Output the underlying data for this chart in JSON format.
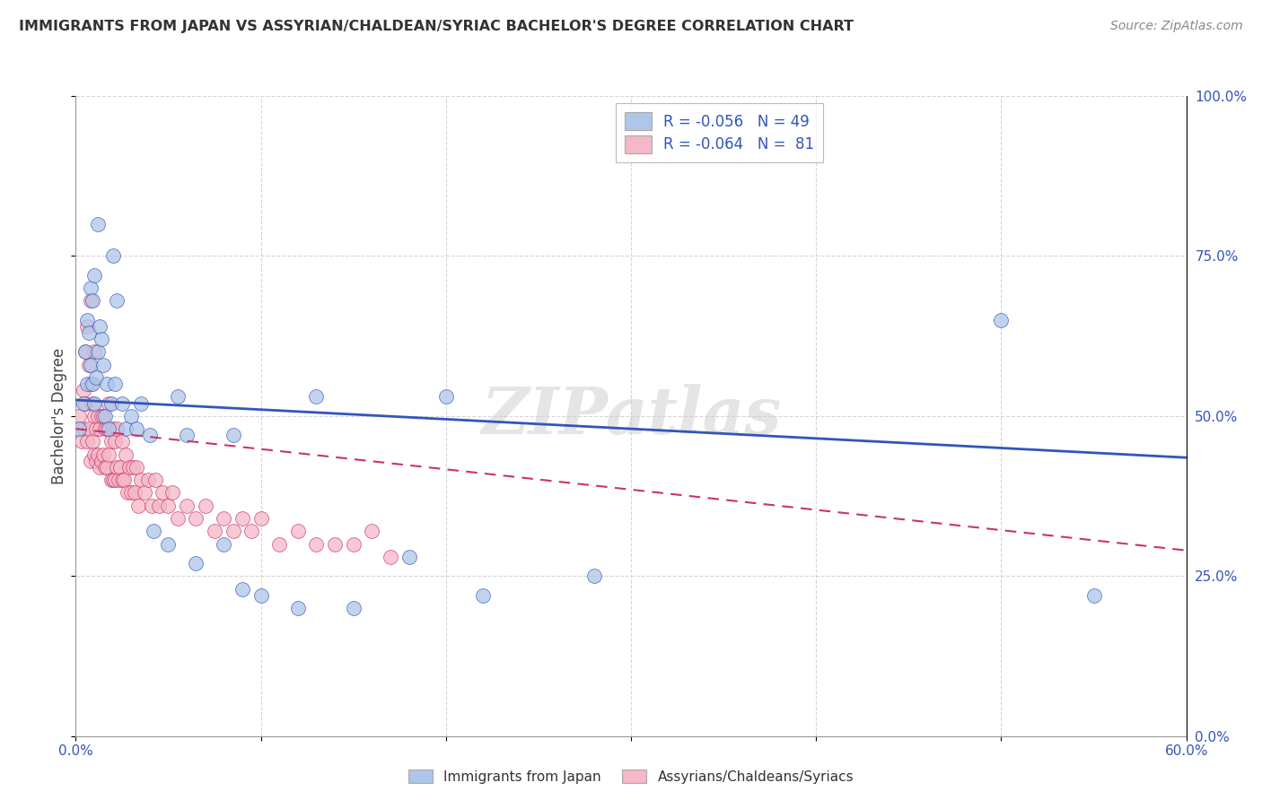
{
  "title": "IMMIGRANTS FROM JAPAN VS ASSYRIAN/CHALDEAN/SYRIAC BACHELOR'S DEGREE CORRELATION CHART",
  "source": "Source: ZipAtlas.com",
  "xlabel_ticks": [
    "0.0%",
    "",
    "",
    "",
    "",
    "",
    "60.0%"
  ],
  "xlabel_values": [
    0.0,
    0.1,
    0.2,
    0.3,
    0.4,
    0.5,
    0.6
  ],
  "ylabel_ticks": [
    "100.0%",
    "75.0%",
    "50.0%",
    "25.0%",
    "0.0%"
  ],
  "ylabel_values": [
    1.0,
    0.75,
    0.5,
    0.25,
    0.0
  ],
  "xlim": [
    0.0,
    0.6
  ],
  "ylim": [
    0.0,
    1.0
  ],
  "ylabel": "Bachelor's Degree",
  "legend_label1": "R = -0.056   N = 49",
  "legend_label2": "R = -0.064   N =  81",
  "legend_color1": "#aec6e8",
  "legend_color2": "#f4b8c8",
  "scatter_color1": "#aec6e8",
  "scatter_color2": "#f4b8c8",
  "line_color1": "#3355bb",
  "line_color2": "#cc3366",
  "watermark": "ZIPatlas",
  "bottom_label1": "Immigrants from Japan",
  "bottom_label2": "Assyrians/Chaldeans/Syriacs",
  "japan_x": [
    0.002,
    0.004,
    0.005,
    0.006,
    0.006,
    0.007,
    0.008,
    0.008,
    0.009,
    0.009,
    0.01,
    0.01,
    0.011,
    0.012,
    0.012,
    0.013,
    0.014,
    0.015,
    0.016,
    0.017,
    0.018,
    0.019,
    0.02,
    0.021,
    0.022,
    0.025,
    0.027,
    0.03,
    0.033,
    0.035,
    0.04,
    0.042,
    0.05,
    0.055,
    0.06,
    0.065,
    0.08,
    0.085,
    0.09,
    0.1,
    0.12,
    0.13,
    0.15,
    0.18,
    0.2,
    0.22,
    0.28,
    0.5,
    0.55
  ],
  "japan_y": [
    0.48,
    0.52,
    0.6,
    0.55,
    0.65,
    0.63,
    0.58,
    0.7,
    0.55,
    0.68,
    0.52,
    0.72,
    0.56,
    0.6,
    0.8,
    0.64,
    0.62,
    0.58,
    0.5,
    0.55,
    0.48,
    0.52,
    0.75,
    0.55,
    0.68,
    0.52,
    0.48,
    0.5,
    0.48,
    0.52,
    0.47,
    0.32,
    0.3,
    0.53,
    0.47,
    0.27,
    0.3,
    0.47,
    0.23,
    0.22,
    0.2,
    0.53,
    0.2,
    0.28,
    0.53,
    0.22,
    0.25,
    0.65,
    0.22
  ],
  "assyrian_x": [
    0.002,
    0.003,
    0.004,
    0.004,
    0.005,
    0.005,
    0.006,
    0.006,
    0.007,
    0.007,
    0.008,
    0.008,
    0.008,
    0.009,
    0.009,
    0.01,
    0.01,
    0.01,
    0.011,
    0.011,
    0.012,
    0.012,
    0.013,
    0.013,
    0.014,
    0.014,
    0.015,
    0.015,
    0.016,
    0.016,
    0.017,
    0.017,
    0.018,
    0.018,
    0.019,
    0.019,
    0.02,
    0.02,
    0.021,
    0.021,
    0.022,
    0.022,
    0.023,
    0.024,
    0.025,
    0.025,
    0.026,
    0.027,
    0.028,
    0.029,
    0.03,
    0.031,
    0.032,
    0.033,
    0.034,
    0.035,
    0.037,
    0.039,
    0.041,
    0.043,
    0.045,
    0.047,
    0.05,
    0.052,
    0.055,
    0.06,
    0.065,
    0.07,
    0.075,
    0.08,
    0.085,
    0.09,
    0.095,
    0.1,
    0.11,
    0.12,
    0.13,
    0.14,
    0.15,
    0.16,
    0.17
  ],
  "assyrian_y": [
    0.5,
    0.46,
    0.54,
    0.48,
    0.52,
    0.6,
    0.46,
    0.64,
    0.48,
    0.58,
    0.43,
    0.55,
    0.68,
    0.46,
    0.52,
    0.44,
    0.5,
    0.6,
    0.43,
    0.48,
    0.44,
    0.5,
    0.42,
    0.48,
    0.43,
    0.5,
    0.44,
    0.5,
    0.42,
    0.48,
    0.42,
    0.48,
    0.44,
    0.52,
    0.4,
    0.46,
    0.4,
    0.48,
    0.4,
    0.46,
    0.42,
    0.48,
    0.4,
    0.42,
    0.4,
    0.46,
    0.4,
    0.44,
    0.38,
    0.42,
    0.38,
    0.42,
    0.38,
    0.42,
    0.36,
    0.4,
    0.38,
    0.4,
    0.36,
    0.4,
    0.36,
    0.38,
    0.36,
    0.38,
    0.34,
    0.36,
    0.34,
    0.36,
    0.32,
    0.34,
    0.32,
    0.34,
    0.32,
    0.34,
    0.3,
    0.32,
    0.3,
    0.3,
    0.3,
    0.32,
    0.28
  ],
  "japan_trend_x": [
    0.0,
    0.6
  ],
  "japan_trend_y": [
    0.525,
    0.435
  ],
  "assyrian_trend_x": [
    0.0,
    0.18
  ],
  "assyrian_trend_y": [
    0.48,
    0.4
  ]
}
